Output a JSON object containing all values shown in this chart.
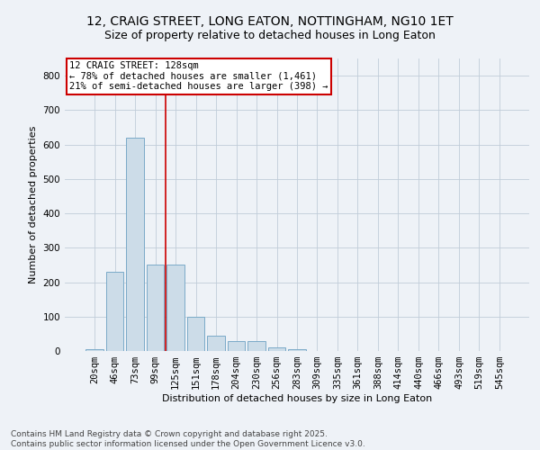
{
  "title_line1": "12, CRAIG STREET, LONG EATON, NOTTINGHAM, NG10 1ET",
  "title_line2": "Size of property relative to detached houses in Long Eaton",
  "xlabel": "Distribution of detached houses by size in Long Eaton",
  "ylabel": "Number of detached properties",
  "categories": [
    "20sqm",
    "46sqm",
    "73sqm",
    "99sqm",
    "125sqm",
    "151sqm",
    "178sqm",
    "204sqm",
    "230sqm",
    "256sqm",
    "283sqm",
    "309sqm",
    "335sqm",
    "361sqm",
    "388sqm",
    "414sqm",
    "440sqm",
    "466sqm",
    "493sqm",
    "519sqm",
    "545sqm"
  ],
  "values": [
    5,
    230,
    620,
    250,
    250,
    100,
    45,
    30,
    30,
    10,
    5,
    1,
    0,
    0,
    0,
    0,
    0,
    0,
    0,
    0,
    0
  ],
  "bar_color": "#ccdce8",
  "bar_edge_color": "#7aaac8",
  "vline_color": "#cc0000",
  "vline_x_idx": 3.5,
  "annotation_text": "12 CRAIG STREET: 128sqm\n← 78% of detached houses are smaller (1,461)\n21% of semi-detached houses are larger (398) →",
  "annotation_box_color": "#ffffff",
  "annotation_box_edge": "#cc0000",
  "ylim": [
    0,
    850
  ],
  "yticks": [
    0,
    100,
    200,
    300,
    400,
    500,
    600,
    700,
    800
  ],
  "background_color": "#eef2f7",
  "grid_color": "#c0ccd8",
  "footer_text": "Contains HM Land Registry data © Crown copyright and database right 2025.\nContains public sector information licensed under the Open Government Licence v3.0.",
  "title_fontsize": 10,
  "subtitle_fontsize": 9,
  "axis_label_fontsize": 8,
  "tick_fontsize": 7.5,
  "annotation_fontsize": 7.5,
  "footer_fontsize": 6.5
}
